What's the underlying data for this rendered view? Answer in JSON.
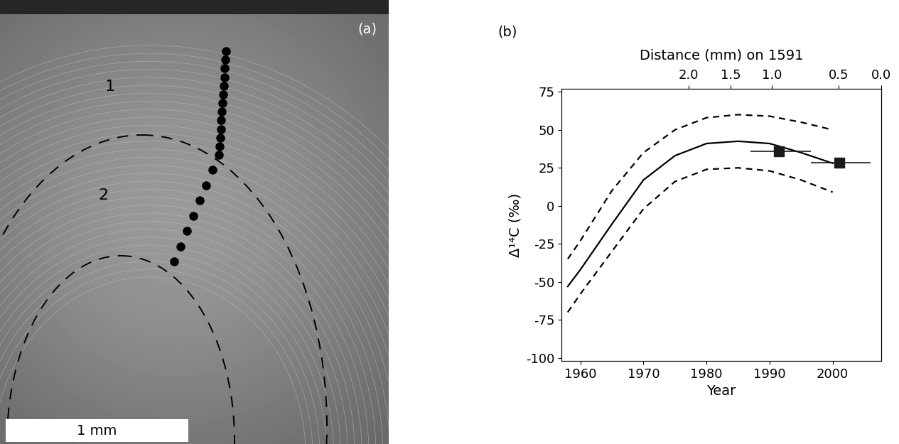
{
  "chart_data": [
    {
      "type": "image",
      "panel_label": "(a)",
      "region_labels": [
        "1",
        "2"
      ],
      "scale_bar": "1 mm"
    },
    {
      "type": "line",
      "panel_label": "(b)",
      "xlabel": "Year",
      "ylabel": "Δ¹⁴C (‰)",
      "xlim": [
        1957,
        2007.7
      ],
      "xticks": [
        1960,
        1970,
        1980,
        1990,
        2000
      ],
      "ylim": [
        -102,
        77
      ],
      "yticks": [
        -100,
        -75,
        -50,
        -25,
        0,
        25,
        50,
        75
      ],
      "top_axis": {
        "label": "Distance (mm) on 1591",
        "ticks": [
          {
            "value": 1977.2,
            "label": "2.0"
          },
          {
            "value": 1983.8,
            "label": "1.5"
          },
          {
            "value": 1990.4,
            "label": "1.0"
          },
          {
            "value": 2000.9,
            "label": "0.5"
          },
          {
            "value": 2007.7,
            "label": "0.0"
          }
        ]
      },
      "grid": false,
      "series": [
        {
          "type": "line",
          "line_style": "solid",
          "color": "#000000",
          "x": [
            1958,
            1960,
            1965,
            1970,
            1975,
            1980,
            1985,
            1990,
            1995,
            2000
          ],
          "values": [
            -53,
            -42,
            -12,
            17,
            33,
            41,
            42.5,
            41,
            35,
            28
          ]
        },
        {
          "type": "line",
          "line_style": "dashed",
          "color": "#000000",
          "x": [
            1958,
            1960,
            1965,
            1970,
            1975,
            1980,
            1985,
            1990,
            1995,
            2000
          ],
          "values": [
            -35,
            -23,
            10,
            35,
            50,
            58,
            60,
            59,
            55,
            50
          ]
        },
        {
          "type": "line",
          "line_style": "dashed",
          "color": "#000000",
          "x": [
            1958,
            1960,
            1965,
            1970,
            1975,
            1980,
            1985,
            1990,
            1995,
            2000
          ],
          "values": [
            -70,
            -58,
            -30,
            -2,
            16,
            24,
            25,
            23,
            17,
            9
          ]
        },
        {
          "type": "scatter",
          "marker": "square",
          "color": "#1a1a1a",
          "x": [
            1991.5,
            2001
          ],
          "values": [
            36,
            28.5
          ],
          "xerr_low": [
            4.5,
            4.5
          ],
          "xerr_high": [
            5,
            5
          ]
        }
      ]
    }
  ]
}
